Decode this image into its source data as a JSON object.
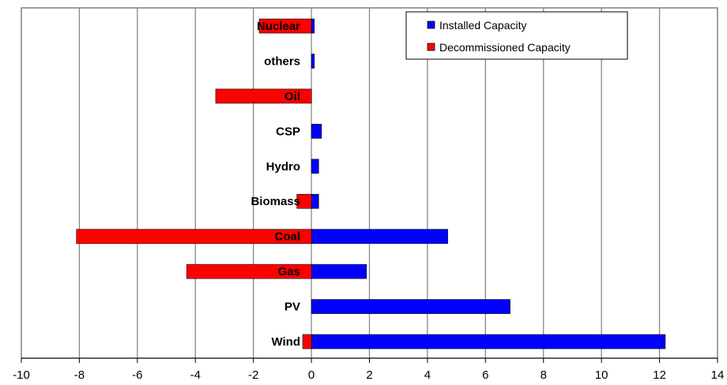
{
  "chart_data": {
    "type": "bar",
    "orientation": "horizontal",
    "categories": [
      "Nuclear",
      "others",
      "Oil",
      "CSP",
      "Hydro",
      "Biomass",
      "Coal",
      "Gas",
      "PV",
      "Wind"
    ],
    "series": [
      {
        "name": "Installed Capacity",
        "color": "#0000ff",
        "values": [
          0.1,
          0.1,
          0,
          0.35,
          0.25,
          0.25,
          4.7,
          1.9,
          6.85,
          12.2
        ]
      },
      {
        "name": "Decommissioned Capacity",
        "color": "#ff0000",
        "values": [
          -1.8,
          0,
          -3.3,
          0,
          0,
          -0.5,
          -8.1,
          -4.3,
          0,
          -0.3
        ]
      }
    ],
    "xlim": [
      -10,
      14
    ],
    "xticks": [
      -10,
      -8,
      -6,
      -4,
      -2,
      0,
      2,
      4,
      6,
      8,
      10,
      12,
      14
    ],
    "grid": "vertical",
    "legend_position": "top-right"
  }
}
